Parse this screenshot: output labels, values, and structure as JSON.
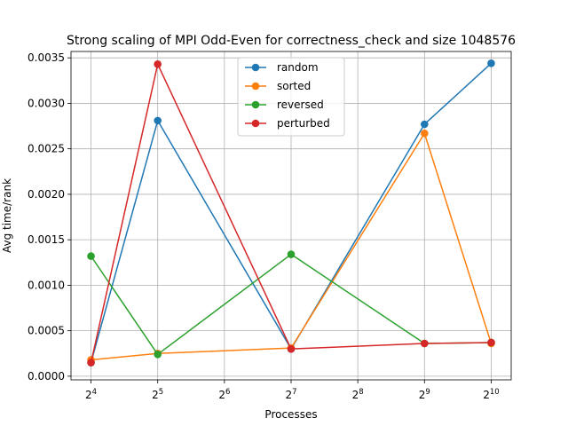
{
  "chart_data": {
    "type": "line",
    "title": "Strong scaling of MPI Odd-Even for correctness_check and size 1048576",
    "xlabel": "Processes",
    "ylabel": "Avg time/rank",
    "x_scale": "log2",
    "x_ticks": [
      {
        "base": "2",
        "exp": "4",
        "value": 16
      },
      {
        "base": "2",
        "exp": "5",
        "value": 32
      },
      {
        "base": "2",
        "exp": "6",
        "value": 64
      },
      {
        "base": "2",
        "exp": "7",
        "value": 128
      },
      {
        "base": "2",
        "exp": "8",
        "value": 256
      },
      {
        "base": "2",
        "exp": "9",
        "value": 512
      },
      {
        "base": "2",
        "exp": "10",
        "value": 1024
      }
    ],
    "y_ticks": [
      "0.0000",
      "0.0005",
      "0.0010",
      "0.0015",
      "0.0020",
      "0.0025",
      "0.0030",
      "0.0035"
    ],
    "ylim": [
      -4e-05,
      0.00357
    ],
    "x": [
      16,
      32,
      128,
      512,
      1024
    ],
    "grid": true,
    "legend_position": "upper-center",
    "series": [
      {
        "name": "random",
        "color": "#1f77b4",
        "values": [
          0.00015,
          0.00281,
          0.0003,
          0.00277,
          0.00344
        ]
      },
      {
        "name": "sorted",
        "color": "#ff7f0e",
        "values": [
          0.00018,
          0.00025,
          0.00031,
          0.00267,
          0.00036
        ]
      },
      {
        "name": "reversed",
        "color": "#2ca02c",
        "values": [
          0.00132,
          0.00024,
          0.00134,
          0.00036,
          0.00037
        ]
      },
      {
        "name": "perturbed",
        "color": "#d62728",
        "values": [
          0.00015,
          0.00343,
          0.0003,
          0.00036,
          0.00037
        ]
      }
    ]
  }
}
